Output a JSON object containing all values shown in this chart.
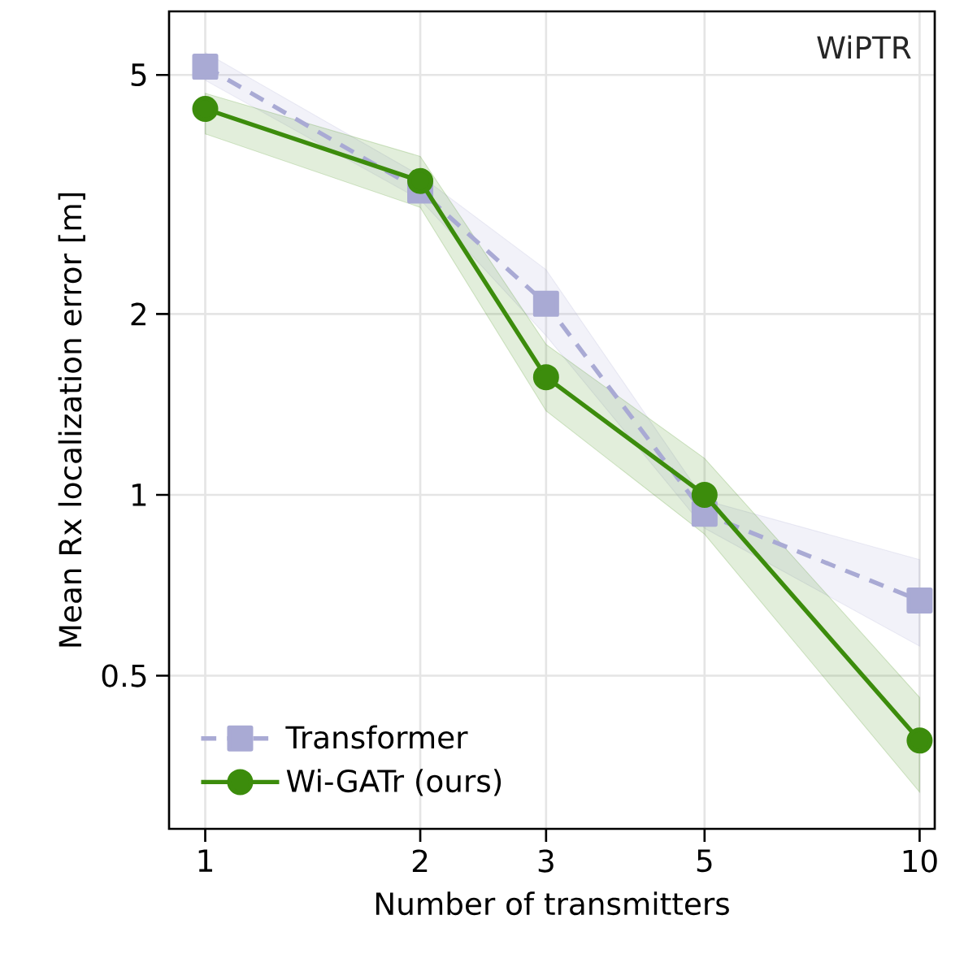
{
  "chart_data": {
    "type": "line",
    "xlabel": "Number of transmitters",
    "ylabel": "Mean Rx localization error [m]",
    "annotations": [
      "WiPTR"
    ],
    "x": [
      1,
      2,
      3,
      5,
      10
    ],
    "series": [
      {
        "name": "Transformer",
        "color": "#a9aad4",
        "marker": "square",
        "line_style": "dashed",
        "values": [
          5.16,
          3.21,
          2.08,
          0.93,
          0.667
        ],
        "lower": [
          4.9,
          3.1,
          1.84,
          0.88,
          0.56
        ],
        "upper": [
          5.45,
          3.4,
          2.37,
          0.98,
          0.78
        ]
      },
      {
        "name": "Wi-GATr (ours)",
        "color": "#3c8c0c",
        "marker": "circle",
        "line_style": "solid",
        "values": [
          4.39,
          3.33,
          1.57,
          1.0,
          0.39
        ],
        "lower": [
          3.99,
          3.01,
          1.38,
          0.86,
          0.32
        ],
        "upper": [
          4.66,
          3.66,
          1.78,
          1.15,
          0.46
        ]
      }
    ],
    "log": "xy",
    "xlim": [
      0.89,
      10.5
    ],
    "ylim": [
      0.278,
      6.38
    ],
    "xticks": [
      1,
      2,
      3,
      5,
      10
    ],
    "yticks": [
      0.5,
      1,
      2,
      5
    ],
    "grid": true,
    "legend": "bottom left"
  }
}
